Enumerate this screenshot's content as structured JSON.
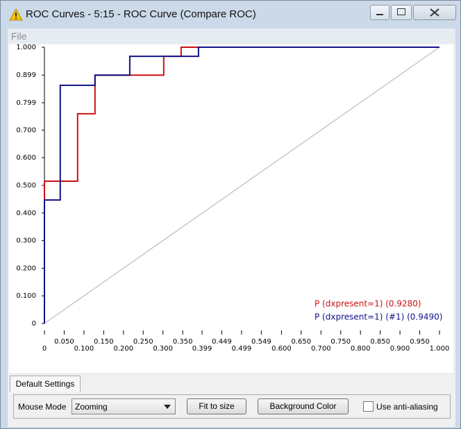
{
  "window": {
    "title": "ROC Curves - 5:15 - ROC Curve (Compare ROC)"
  },
  "menu": [
    "File"
  ],
  "chart_data": {
    "type": "line",
    "xlim": [
      0,
      1
    ],
    "ylim": [
      0,
      1
    ],
    "xticks": [
      0,
      {
        "value": 0.05,
        "label": "0.050"
      },
      {
        "value": 0.1,
        "label": "0.100"
      },
      {
        "value": 0.15,
        "label": "0.150"
      },
      {
        "value": 0.2,
        "label": "0.200"
      },
      {
        "value": 0.25,
        "label": "0.250"
      },
      {
        "value": 0.3,
        "label": "0.300"
      },
      {
        "value": 0.35,
        "label": "0.350"
      },
      0.399,
      0.449,
      0.499,
      0.549,
      {
        "value": 0.6,
        "label": "0.600"
      },
      {
        "value": 0.65,
        "label": "0.650"
      },
      {
        "value": 0.7,
        "label": "0.700"
      },
      {
        "value": 0.75,
        "label": "0.750"
      },
      {
        "value": 0.8,
        "label": "0.800"
      },
      {
        "value": 0.85,
        "label": "0.850"
      },
      {
        "value": 0.9,
        "label": "0.900"
      },
      {
        "value": 0.95,
        "label": "0.950"
      },
      {
        "value": 1,
        "label": "1.000"
      }
    ],
    "yticks": [
      0,
      {
        "value": 0.1,
        "label": "0.100"
      },
      {
        "value": 0.2,
        "label": "0.200"
      },
      {
        "value": 0.3,
        "label": "0.300"
      },
      {
        "value": 0.4,
        "label": "0.400"
      },
      {
        "value": 0.5,
        "label": "0.500"
      },
      {
        "value": 0.6,
        "label": "0.600"
      },
      {
        "value": 0.7,
        "label": "0.700"
      },
      0.799,
      0.899,
      {
        "value": 1,
        "label": "1.000"
      }
    ],
    "series": [
      {
        "name": "P (dxpresent=1) (0.9280)",
        "color": "#cc1111",
        "x": [
          0,
          0,
          0.084,
          0.084,
          0.128,
          0.128,
          0.302,
          0.302,
          0.346,
          0.346,
          1
        ],
        "values": [
          0,
          0.515,
          0.515,
          0.759,
          0.759,
          0.899,
          0.899,
          0.967,
          0.967,
          1,
          1
        ]
      },
      {
        "name": "P (dxpresent=1) (#1) (0.9490)",
        "color": "#111188",
        "x": [
          0,
          0,
          0.04,
          0.04,
          0.128,
          0.128,
          0.216,
          0.216,
          0.39,
          0.39,
          1
        ],
        "values": [
          0,
          0.447,
          0.447,
          0.862,
          0.862,
          0.899,
          0.899,
          0.967,
          0.967,
          1,
          1
        ]
      }
    ]
  },
  "settings": {
    "tab": "Default Settings",
    "mouse_mode_label": "Mouse Mode",
    "mouse_mode": "Zooming",
    "buttons": [
      "Fit to size",
      "Background Color"
    ],
    "checkbox": "Use anti-aliasing"
  }
}
